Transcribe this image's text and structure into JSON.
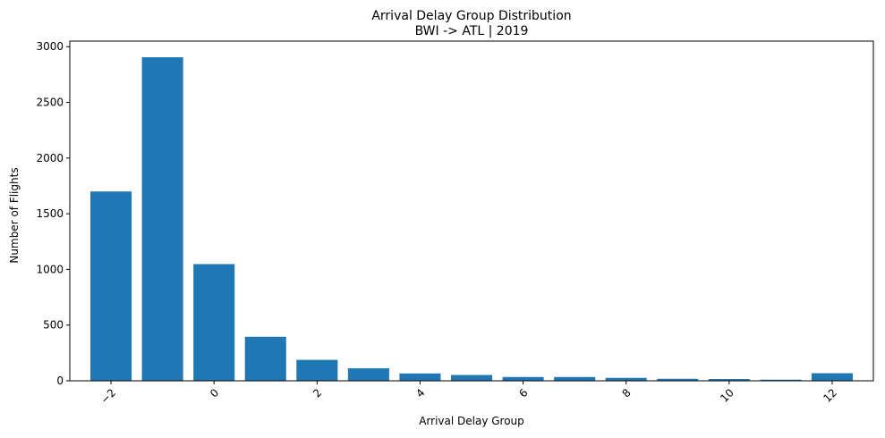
{
  "chart_data": {
    "type": "bar",
    "title": "Arrival Delay Group Distribution",
    "subtitle": "BWI -> ATL | 2019",
    "xlabel": "Arrival Delay Group",
    "ylabel": "Number of Flights",
    "x": [
      -2,
      -1,
      0,
      1,
      2,
      3,
      4,
      5,
      6,
      7,
      8,
      9,
      10,
      11,
      12
    ],
    "values": [
      1700,
      2905,
      1048,
      395,
      188,
      112,
      66,
      52,
      34,
      34,
      26,
      18,
      16,
      10,
      68
    ],
    "xlim": [
      -2.8,
      12.8
    ],
    "ylim": [
      0,
      3050
    ],
    "xticks": [
      -2,
      0,
      2,
      4,
      6,
      8,
      10,
      12
    ],
    "xtick_labels": [
      "−2",
      "0",
      "2",
      "4",
      "6",
      "8",
      "10",
      "12"
    ],
    "yticks": [
      0,
      500,
      1000,
      1500,
      2000,
      2500,
      3000
    ],
    "ytick_labels": [
      "0",
      "500",
      "1000",
      "1500",
      "2000",
      "2500",
      "3000"
    ],
    "bar_color": "#1f77b4",
    "grid": false,
    "legend": "none"
  }
}
